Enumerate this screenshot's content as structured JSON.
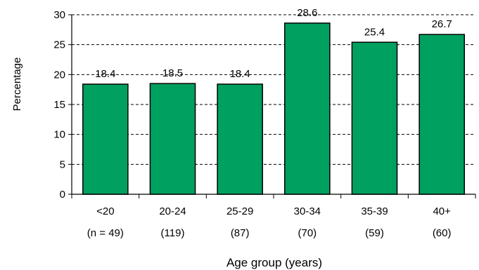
{
  "chart_data": {
    "type": "bar",
    "categories": [
      "<20",
      "20-24",
      "25-29",
      "30-34",
      "35-39",
      "40+"
    ],
    "sublabels": [
      "(n = 49)",
      "(119)",
      "(87)",
      "(70)",
      "(59)",
      "(60)"
    ],
    "values": [
      18.4,
      18.5,
      18.4,
      28.6,
      25.4,
      26.7
    ],
    "data_labels": [
      "18.4",
      "18.5",
      "18.4",
      "28.6",
      "25.4",
      "26.7"
    ],
    "xlabel": "Age group (years)",
    "ylabel": "Percentage",
    "ylim": [
      0,
      30
    ],
    "yticks": [
      0,
      5,
      10,
      15,
      20,
      25,
      30
    ],
    "grid": "dashed horizontal",
    "bar_color": "#00a060"
  }
}
